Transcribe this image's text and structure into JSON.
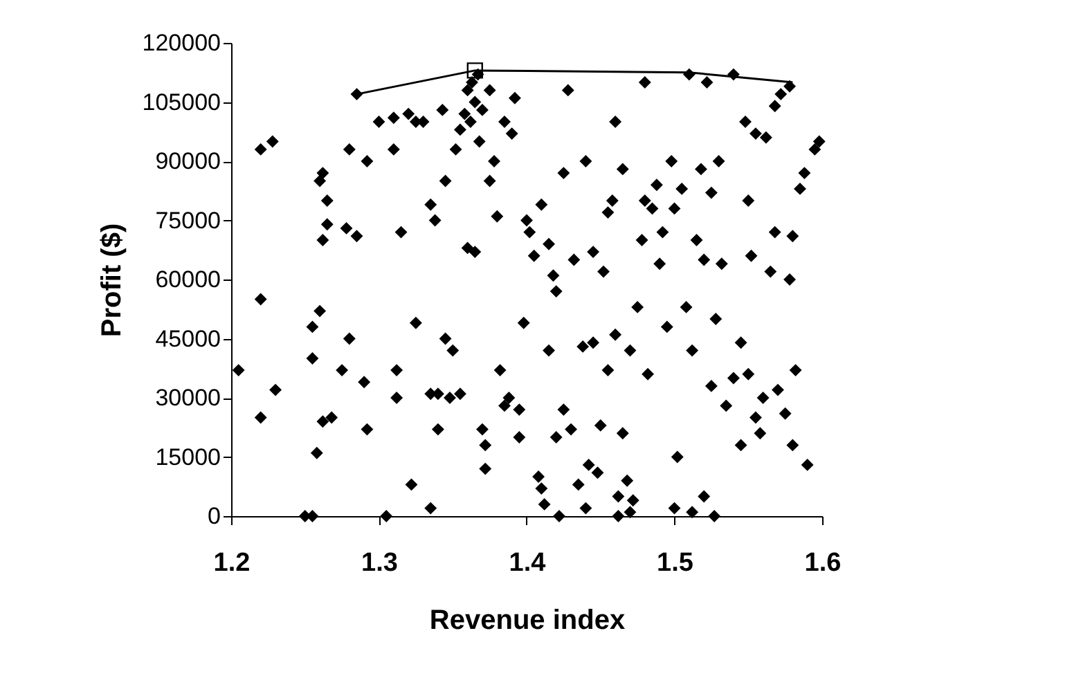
{
  "chart_data": {
    "type": "scatter",
    "xlabel": "Revenue index",
    "ylabel": "Profit ($)",
    "xlim": [
      1.2,
      1.6
    ],
    "xticks": [
      1.2,
      1.3,
      1.4,
      1.5,
      1.6
    ],
    "ylim": [
      0,
      120000
    ],
    "yticks": [
      0,
      15000,
      30000,
      45000,
      60000,
      75000,
      90000,
      105000,
      120000
    ],
    "grid": false,
    "series": [
      {
        "type": "scatter",
        "marker": "diamond",
        "color": "#000000",
        "x": [
          1.205,
          1.22,
          1.228,
          1.22,
          1.22,
          1.23,
          1.25,
          1.255,
          1.255,
          1.255,
          1.258,
          1.26,
          1.26,
          1.262,
          1.262,
          1.265,
          1.265,
          1.262,
          1.268,
          1.275,
          1.278,
          1.28,
          1.28,
          1.285,
          1.285,
          1.29,
          1.292,
          1.292,
          1.3,
          1.305,
          1.31,
          1.31,
          1.312,
          1.312,
          1.315,
          1.32,
          1.322,
          1.325,
          1.325,
          1.33,
          1.335,
          1.335,
          1.335,
          1.338,
          1.34,
          1.34,
          1.343,
          1.345,
          1.345,
          1.348,
          1.35,
          1.352,
          1.355,
          1.355,
          1.358,
          1.36,
          1.36,
          1.362,
          1.363,
          1.365,
          1.367,
          1.365,
          1.368,
          1.37,
          1.37,
          1.372,
          1.372,
          1.375,
          1.375,
          1.378,
          1.38,
          1.382,
          1.385,
          1.385,
          1.388,
          1.39,
          1.392,
          1.395,
          1.395,
          1.398,
          1.4,
          1.402,
          1.405,
          1.408,
          1.41,
          1.41,
          1.412,
          1.415,
          1.415,
          1.418,
          1.42,
          1.42,
          1.422,
          1.425,
          1.425,
          1.428,
          1.43,
          1.432,
          1.435,
          1.438,
          1.44,
          1.44,
          1.442,
          1.445,
          1.445,
          1.448,
          1.45,
          1.452,
          1.455,
          1.455,
          1.458,
          1.46,
          1.46,
          1.462,
          1.462,
          1.465,
          1.465,
          1.468,
          1.47,
          1.47,
          1.472,
          1.475,
          1.478,
          1.48,
          1.48,
          1.482,
          1.485,
          1.488,
          1.49,
          1.492,
          1.495,
          1.498,
          1.5,
          1.5,
          1.502,
          1.505,
          1.508,
          1.51,
          1.512,
          1.512,
          1.515,
          1.518,
          1.52,
          1.52,
          1.522,
          1.525,
          1.525,
          1.527,
          1.528,
          1.53,
          1.532,
          1.535,
          1.54,
          1.54,
          1.545,
          1.545,
          1.548,
          1.55,
          1.55,
          1.552,
          1.555,
          1.555,
          1.558,
          1.56,
          1.562,
          1.565,
          1.568,
          1.568,
          1.57,
          1.572,
          1.575,
          1.578,
          1.578,
          1.58,
          1.58,
          1.582,
          1.585,
          1.588,
          1.59,
          1.595,
          1.598
        ],
        "values": [
          37000,
          93000,
          95000,
          55000,
          25000,
          32000,
          0,
          0,
          40000,
          48000,
          16000,
          52000,
          85000,
          87000,
          70000,
          74000,
          80000,
          24000,
          25000,
          37000,
          73000,
          93000,
          45000,
          107000,
          71000,
          34000,
          22000,
          90000,
          100000,
          0,
          101000,
          93000,
          30000,
          37000,
          72000,
          102000,
          8000,
          49000,
          100000,
          100000,
          2000,
          31000,
          79000,
          75000,
          22000,
          31000,
          103000,
          45000,
          85000,
          30000,
          42000,
          93000,
          31000,
          98000,
          102000,
          68000,
          108000,
          100000,
          110000,
          105000,
          112000,
          67000,
          95000,
          103000,
          22000,
          18000,
          12000,
          108000,
          85000,
          90000,
          76000,
          37000,
          100000,
          28000,
          30000,
          97000,
          106000,
          27000,
          20000,
          49000,
          75000,
          72000,
          66000,
          10000,
          7000,
          79000,
          3000,
          42000,
          69000,
          61000,
          57000,
          20000,
          0,
          27000,
          87000,
          108000,
          22000,
          65000,
          8000,
          43000,
          90000,
          2000,
          13000,
          67000,
          44000,
          11000,
          23000,
          62000,
          37000,
          77000,
          80000,
          100000,
          46000,
          5000,
          0,
          21000,
          88000,
          9000,
          42000,
          1000,
          4000,
          53000,
          70000,
          80000,
          110000,
          36000,
          78000,
          84000,
          64000,
          72000,
          48000,
          90000,
          2000,
          78000,
          15000,
          83000,
          53000,
          112000,
          42000,
          1000,
          70000,
          88000,
          65000,
          5000,
          110000,
          82000,
          33000,
          0,
          50000,
          90000,
          64000,
          28000,
          35000,
          112000,
          44000,
          18000,
          100000,
          36000,
          80000,
          66000,
          25000,
          97000,
          21000,
          30000,
          96000,
          62000,
          72000,
          104000,
          32000,
          107000,
          26000,
          109000,
          60000,
          71000,
          18000,
          37000,
          83000,
          87000,
          13000,
          93000,
          95000
        ]
      },
      {
        "type": "line",
        "marker": "none",
        "color": "#000000",
        "x": [
          1.285,
          1.365,
          1.51,
          1.58
        ],
        "values": [
          107000,
          113000,
          112500,
          110000
        ]
      },
      {
        "type": "scatter",
        "marker": "square",
        "color": "#000000",
        "x": [
          1.365
        ],
        "values": [
          113000
        ]
      }
    ]
  }
}
